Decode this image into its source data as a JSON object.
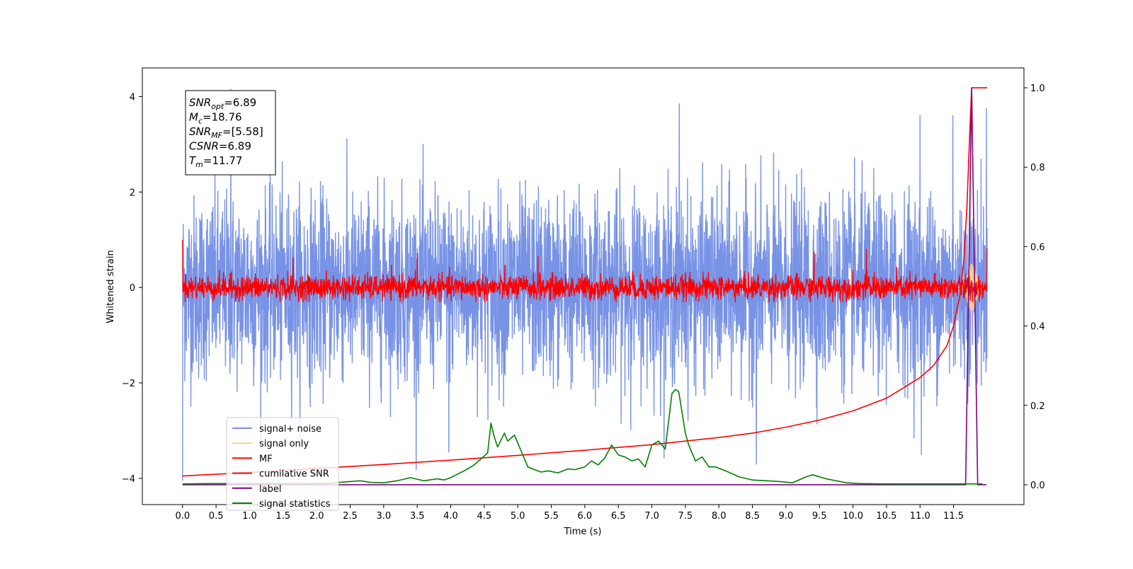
{
  "chart_data": {
    "type": "line",
    "title": "",
    "xlabel": "Time (s)",
    "ylabel": "Whitened strain",
    "ylabel_right": "",
    "xlim": [
      -0.6,
      12.55
    ],
    "ylim": [
      -4.55,
      4.6
    ],
    "ylim_right": [
      -0.05,
      1.05
    ],
    "x_ticks": [
      0.0,
      0.5,
      1.0,
      1.5,
      2.0,
      2.5,
      3.0,
      3.5,
      4.0,
      4.5,
      5.0,
      5.5,
      6.0,
      6.5,
      7.0,
      7.5,
      8.0,
      8.5,
      9.0,
      9.5,
      10.0,
      10.5,
      11.0,
      11.5
    ],
    "x_tick_labels": [
      "0.0",
      "0.5",
      "1.0",
      "1.5",
      "2.0",
      "2.5",
      "3.0",
      "3.5",
      "4.0",
      "4.5",
      "5.0",
      "5.5",
      "6.0",
      "6.5",
      "7.0",
      "7.5",
      "8.0",
      "8.5",
      "9.0",
      "9.5",
      "10.0",
      "10.5",
      "11.0",
      "11.5"
    ],
    "y_ticks": [
      -4,
      -2,
      0,
      2,
      4
    ],
    "y_tick_labels": [
      "−4",
      "−2",
      "0",
      "2",
      "4"
    ],
    "y_ticks_right": [
      0.0,
      0.2,
      0.4,
      0.6,
      0.8,
      1.0
    ],
    "y_tick_labels_right": [
      "0.0",
      "0.2",
      "0.4",
      "0.6",
      "0.8",
      "1.0"
    ],
    "grid": false,
    "legend_placement": "lower-left",
    "legend": [
      {
        "label": "signal+ noise",
        "color": "#7893e6"
      },
      {
        "label": "signal only",
        "color": "#f5d38a"
      },
      {
        "label": "MF",
        "color": "#ff0000"
      },
      {
        "label": "cumilative SNR",
        "color": "#ff0000"
      },
      {
        "label": "label",
        "color": "#800080"
      },
      {
        "label": "signal statistics",
        "color": "#008000"
      }
    ],
    "info_box": [
      {
        "base": "SNR",
        "sub": "opt",
        "rest": "=6.89"
      },
      {
        "base": "M",
        "sub": "c",
        "rest": "=18.76"
      },
      {
        "base": "SNR",
        "sub": "MF",
        "rest": "=[5.58]"
      },
      {
        "base": "CSNR",
        "sub": "",
        "rest": "=6.89"
      },
      {
        "base": "T",
        "sub": "m",
        "rest": "=11.77"
      }
    ],
    "series": [
      {
        "name": "signal+ noise",
        "axis": "left",
        "color": "#7893e6",
        "style": "noise",
        "x_range": [
          0.0,
          12.0
        ],
        "typical_band": [
          -2.2,
          2.3
        ],
        "max": 4.15,
        "min": -4.05,
        "peaks": [
          [
            0.72,
            4.15
          ],
          [
            7.41,
            3.85
          ],
          [
            11.0,
            3.6
          ],
          [
            11.49,
            3.6
          ],
          [
            11.99,
            3.75
          ]
        ],
        "troughs": [
          [
            0.0,
            -4.05
          ],
          [
            3.97,
            -3.45
          ],
          [
            8.56,
            -3.7
          ],
          [
            11.02,
            -3.5
          ]
        ]
      },
      {
        "name": "signal only",
        "axis": "left",
        "color": "#f5d38a",
        "style": "chirp",
        "x_range": [
          11.5,
          11.99
        ],
        "amplitude_max": 0.5,
        "peak_time": 11.77
      },
      {
        "name": "MF",
        "axis": "left",
        "color": "#ff0000",
        "style": "noise",
        "x_range": [
          0.0,
          12.0
        ],
        "typical_band": [
          -0.25,
          0.35
        ],
        "max": 1.0,
        "min": -0.3,
        "peaks": [
          [
            0.0,
            1.0
          ],
          [
            1.65,
            0.62
          ],
          [
            3.5,
            0.72
          ],
          [
            5.3,
            0.65
          ],
          [
            9.42,
            0.75
          ],
          [
            10.2,
            0.8
          ],
          [
            12.0,
            0.82
          ]
        ]
      },
      {
        "name": "cumilative SNR",
        "axis": "right",
        "color": "#ff0000",
        "style": "line",
        "x": [
          0.0,
          1.0,
          2.0,
          3.0,
          4.0,
          5.0,
          6.0,
          7.0,
          8.0,
          8.5,
          9.0,
          9.5,
          10.0,
          10.5,
          11.0,
          11.2,
          11.4,
          11.5,
          11.6,
          11.65,
          11.7,
          11.74,
          11.77,
          11.78,
          11.9,
          12.0
        ],
        "values": [
          0.022,
          0.031,
          0.041,
          0.051,
          0.062,
          0.074,
          0.087,
          0.101,
          0.119,
          0.13,
          0.145,
          0.163,
          0.186,
          0.218,
          0.27,
          0.3,
          0.35,
          0.4,
          0.48,
          0.56,
          0.7,
          0.88,
          1.0,
          1.0,
          1.0,
          1.0
        ]
      },
      {
        "name": "label",
        "axis": "right",
        "color": "#800080",
        "style": "line",
        "x": [
          0.0,
          11.68,
          11.77,
          11.86,
          11.99
        ],
        "values": [
          0.0,
          0.0,
          1.0,
          0.0,
          0.0
        ]
      },
      {
        "name": "signal statistics",
        "axis": "right",
        "color": "#008000",
        "style": "line",
        "x": [
          0.0,
          0.4,
          1.0,
          1.5,
          2.0,
          2.2,
          2.5,
          2.65,
          2.8,
          3.0,
          3.2,
          3.4,
          3.6,
          3.8,
          3.9,
          4.0,
          4.2,
          4.35,
          4.45,
          4.55,
          4.6,
          4.65,
          4.7,
          4.8,
          4.85,
          4.95,
          5.05,
          5.15,
          5.25,
          5.35,
          5.45,
          5.6,
          5.75,
          5.85,
          6.0,
          6.1,
          6.2,
          6.3,
          6.4,
          6.5,
          6.6,
          6.7,
          6.8,
          6.9,
          7.0,
          7.1,
          7.2,
          7.25,
          7.3,
          7.35,
          7.4,
          7.5,
          7.55,
          7.65,
          7.75,
          7.85,
          7.95,
          8.1,
          8.3,
          8.5,
          8.7,
          8.9,
          9.1,
          9.3,
          9.4,
          9.6,
          9.9,
          10.1,
          10.5,
          11.0,
          11.5,
          11.93
        ],
        "values": [
          0.002,
          0.003,
          0.003,
          0.003,
          0.003,
          0.004,
          0.008,
          0.01,
          0.006,
          0.005,
          0.01,
          0.018,
          0.01,
          0.015,
          0.012,
          0.018,
          0.035,
          0.05,
          0.065,
          0.08,
          0.155,
          0.12,
          0.095,
          0.13,
          0.11,
          0.125,
          0.085,
          0.045,
          0.038,
          0.032,
          0.035,
          0.03,
          0.04,
          0.038,
          0.045,
          0.06,
          0.05,
          0.068,
          0.1,
          0.075,
          0.07,
          0.06,
          0.065,
          0.045,
          0.1,
          0.11,
          0.09,
          0.16,
          0.23,
          0.24,
          0.235,
          0.13,
          0.1,
          0.06,
          0.07,
          0.045,
          0.045,
          0.035,
          0.02,
          0.012,
          0.01,
          0.008,
          0.005,
          0.02,
          0.025,
          0.015,
          0.005,
          0.003,
          0.002,
          0.002,
          0.002,
          0.002
        ]
      }
    ]
  }
}
